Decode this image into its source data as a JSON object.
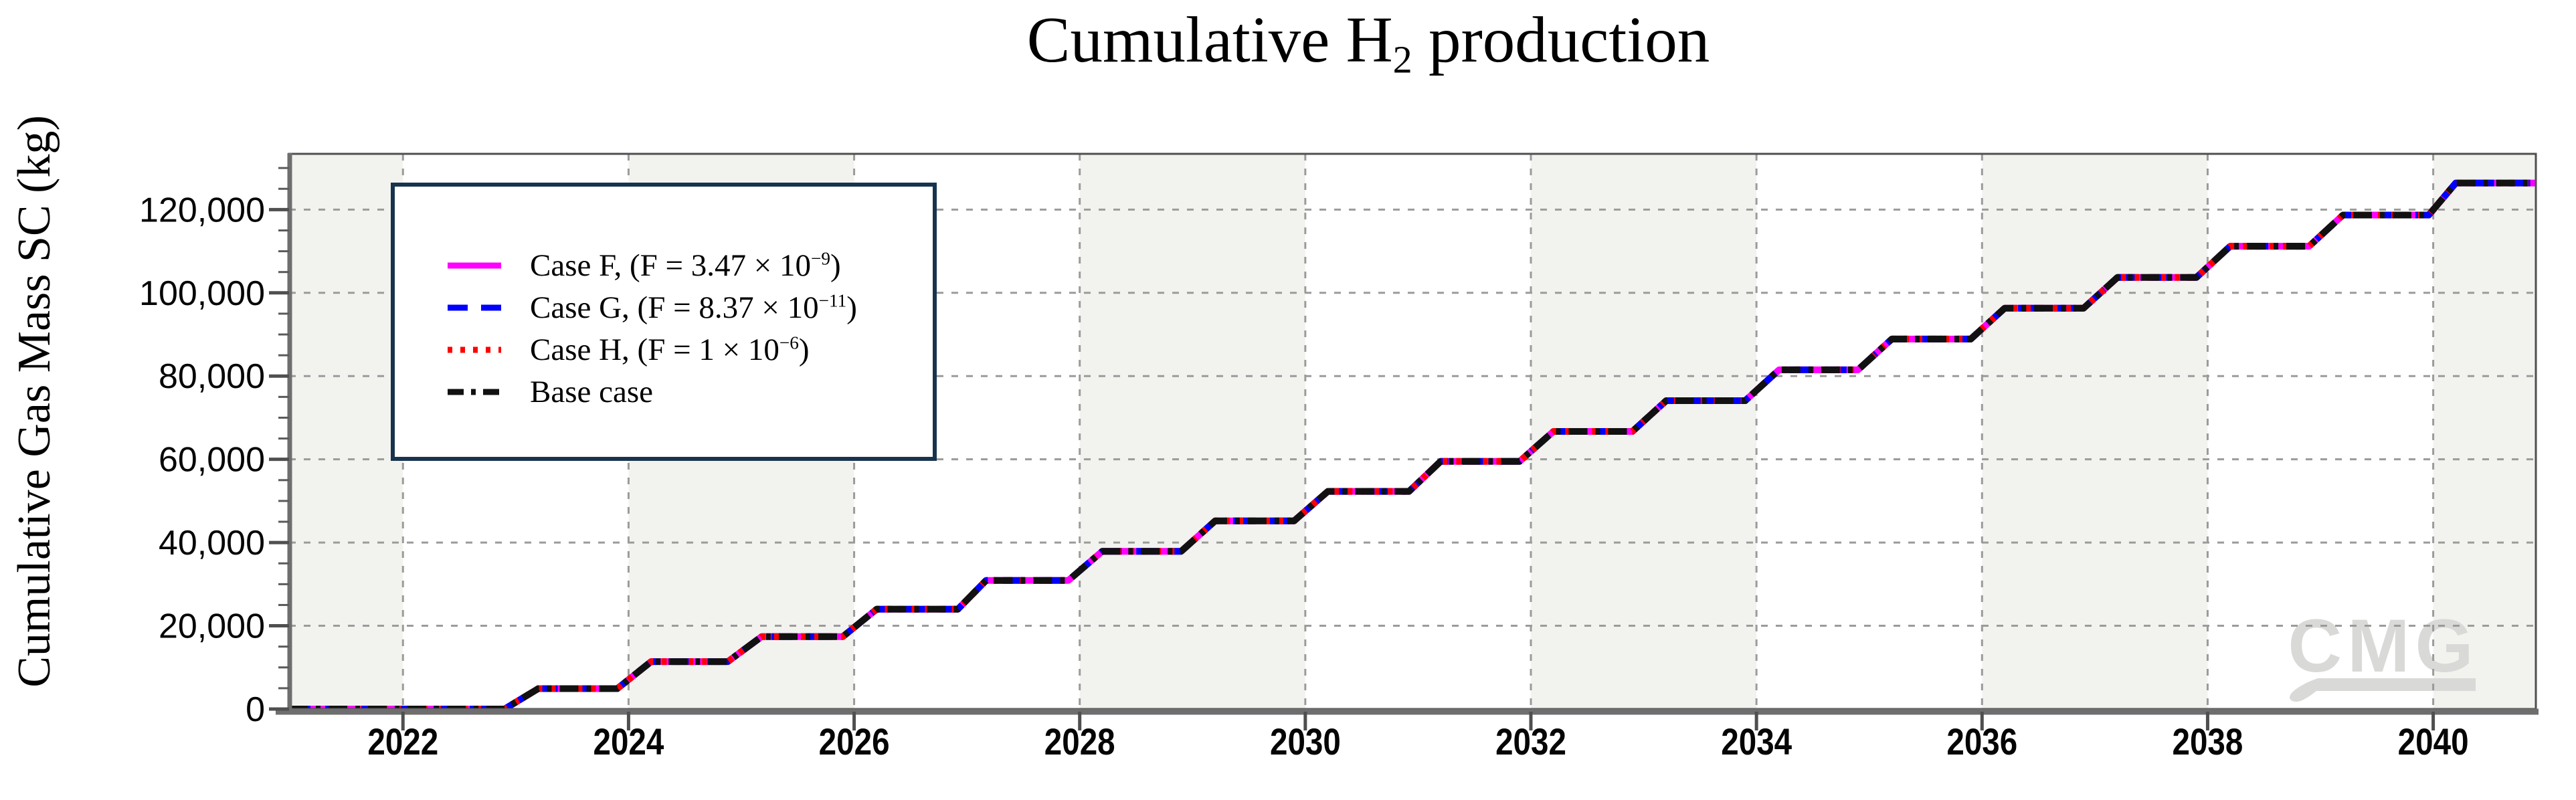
{
  "figure": {
    "title": {
      "prefix": "Cumulative H",
      "sub": "2",
      "suffix": " production"
    },
    "watermark": "CMG"
  },
  "chart_data": {
    "type": "line",
    "title": "Cumulative H2 production",
    "xlabel": "",
    "ylabel": "Cumulative Gas Mass SC (kg)",
    "xlim": [
      2020.99,
      2040.91
    ],
    "ylim": [
      0,
      133400
    ],
    "grid": "dashed gray gridlines at every major tick, both axes",
    "legend_position": "upper-left",
    "x_ticks": [
      2022,
      2024,
      2026,
      2028,
      2030,
      2032,
      2034,
      2036,
      2038,
      2040
    ],
    "x_tick_labels": [
      "2022",
      "2024",
      "2026",
      "2028",
      "2030",
      "2032",
      "2034",
      "2036",
      "2038",
      "2040"
    ],
    "y_ticks": [
      0,
      20000,
      40000,
      60000,
      80000,
      100000,
      120000
    ],
    "y_tick_labels": [
      "0",
      "20,000",
      "40,000",
      "60,000",
      "80,000",
      "100,000",
      "120,000"
    ],
    "y_minor_step": 5000,
    "background_bands": {
      "color": "#f2f2ef",
      "intervals": [
        [
          2020.99,
          2022
        ],
        [
          2024,
          2026
        ],
        [
          2028,
          2030
        ],
        [
          2032,
          2034
        ],
        [
          2036,
          2038
        ],
        [
          2040,
          2040.91
        ]
      ]
    },
    "overlap_note": "All four series coincide exactly on the same annual staircase curve",
    "stairs_points": [
      [
        2020.99,
        0
      ],
      [
        2022.9,
        0
      ],
      [
        2023.2,
        4900
      ],
      [
        2023.9,
        4900
      ],
      [
        2024.2,
        11400
      ],
      [
        2024.88,
        11400
      ],
      [
        2025.18,
        17400
      ],
      [
        2025.9,
        17400
      ],
      [
        2026.2,
        24000
      ],
      [
        2026.92,
        24000
      ],
      [
        2027.17,
        30900
      ],
      [
        2027.9,
        30900
      ],
      [
        2028.2,
        37900
      ],
      [
        2028.9,
        37900
      ],
      [
        2029.2,
        45200
      ],
      [
        2029.9,
        45200
      ],
      [
        2030.2,
        52300
      ],
      [
        2030.92,
        52300
      ],
      [
        2031.2,
        59500
      ],
      [
        2031.9,
        59500
      ],
      [
        2032.2,
        66700
      ],
      [
        2032.9,
        66700
      ],
      [
        2033.2,
        74100
      ],
      [
        2033.9,
        74100
      ],
      [
        2034.2,
        81500
      ],
      [
        2034.9,
        81500
      ],
      [
        2035.2,
        88900
      ],
      [
        2035.9,
        88900
      ],
      [
        2036.2,
        96300
      ],
      [
        2036.9,
        96300
      ],
      [
        2037.2,
        103700
      ],
      [
        2037.9,
        103700
      ],
      [
        2038.2,
        111200
      ],
      [
        2038.9,
        111200
      ],
      [
        2039.2,
        118700
      ],
      [
        2039.96,
        118700
      ],
      [
        2040.2,
        126400
      ],
      [
        2040.91,
        126400
      ]
    ],
    "series": [
      {
        "id": "case-f",
        "name": "Case F, (F = 3.47 × 10⁻⁹)",
        "color": "#ff00ff",
        "style": "solid",
        "values_ref": "stairs_points"
      },
      {
        "id": "case-g",
        "name": "Case G, (F = 8.37 × 10⁻¹¹)",
        "color": "#0000ff",
        "style": "dashed",
        "values_ref": "stairs_points"
      },
      {
        "id": "case-h",
        "name": "Case H, (F = 1 × 10⁻⁶)",
        "color": "#ff0000",
        "style": "dotted",
        "values_ref": "stairs_points"
      },
      {
        "id": "base-case",
        "name": "Base case",
        "color": "#111111",
        "style": "dash-dot",
        "values_ref": "stairs_points"
      }
    ],
    "legend": {
      "entries": [
        {
          "base": "Case F, (F = 3.47 × 10",
          "sup": "−9",
          "close": ")",
          "color": "#ff00ff",
          "style": "solid"
        },
        {
          "base": "Case G, (F = 8.37 × 10",
          "sup": "−11",
          "close": ")",
          "color": "#0000ff",
          "style": "dashed"
        },
        {
          "base": "Case H, (F = 1 × 10",
          "sup": "−6",
          "close": ")",
          "color": "#ff0000",
          "style": "dotted"
        },
        {
          "base": "Base case",
          "sup": "",
          "close": "",
          "color": "#111111",
          "style": "dash-dot"
        }
      ]
    },
    "colors": {
      "grid": "#9b9b9b",
      "frame": "#4f4f4f",
      "axis_thick": "#6e6e6e",
      "band": "#f2f2ef",
      "legend_border": "#18334d",
      "watermark": "#d9d9d7"
    }
  }
}
